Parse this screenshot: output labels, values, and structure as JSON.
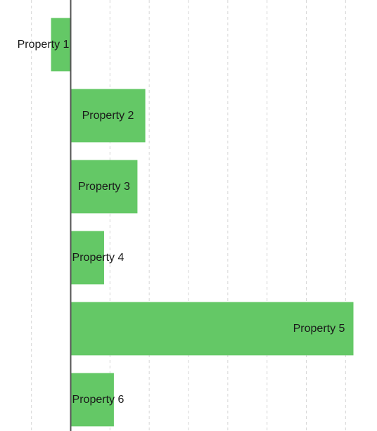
{
  "chart_data": {
    "type": "bar",
    "orientation": "horizontal",
    "title": "",
    "xlabel": "",
    "ylabel": "",
    "categories": [
      "Property 1",
      "Property 2",
      "Property 3",
      "Property 4",
      "Property 5",
      "Property 6"
    ],
    "values": [
      -0.5,
      1.9,
      1.7,
      0.85,
      7.2,
      1.1
    ],
    "xlim": [
      -1.8,
      7.8
    ],
    "grid": {
      "vertical": true,
      "horizontal": false,
      "style": "dashed"
    },
    "legend": "none",
    "bar_color": "#64c866"
  }
}
